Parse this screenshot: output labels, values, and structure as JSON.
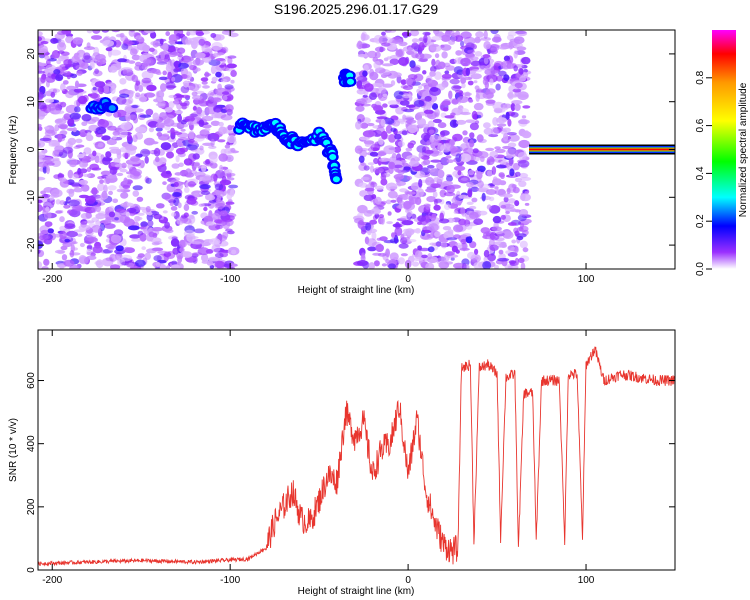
{
  "chart_data": [
    {
      "type": "heatmap",
      "title": "S196.2025.296.01.17.G29",
      "xlabel": "Height of straight line (km)",
      "ylabel": "Frequency (Hz)",
      "xlim": [
        -208,
        150
      ],
      "ylim": [
        -25,
        25
      ],
      "x_ticks": [
        -200,
        -100,
        0,
        100
      ],
      "y_ticks": [
        -20,
        -10,
        0,
        10,
        20
      ],
      "colorbar": {
        "label": "Normalized spectral amplitude",
        "range": [
          0,
          1
        ],
        "ticks": [
          0.0,
          0.2,
          0.4,
          0.6,
          0.8
        ],
        "colors": [
          "#ffffff",
          "#9b30ff",
          "#0000ff",
          "#00ffff",
          "#00ff00",
          "#ffff00",
          "#ff9900",
          "#ff0000",
          "#ff00ff"
        ]
      },
      "noise_regions": [
        {
          "x_range": [
            -208,
            -98
          ]
        },
        {
          "x_range": [
            -28,
            67
          ]
        }
      ],
      "features": [
        {
          "name": "track-descent",
          "points": [
            [
              -95,
              5
            ],
            [
              -85,
              4
            ],
            [
              -75,
              5
            ],
            [
              -70,
              3
            ],
            [
              -62,
              1
            ],
            [
              -50,
              3
            ],
            [
              -43,
              -1
            ],
            [
              -40,
              -6
            ]
          ],
          "peak_amplitude": 0.3
        },
        {
          "name": "blob-upper",
          "points": [
            [
              -36,
              15
            ],
            [
              -32,
              15
            ]
          ],
          "peak_amplitude": 0.3
        },
        {
          "name": "blob-left-1",
          "points": [
            [
              -178,
              9
            ],
            [
              -165,
              9
            ]
          ],
          "peak_amplitude": 0.25
        },
        {
          "name": "carrier-line",
          "points": [
            [
              68,
              0
            ],
            [
              150,
              0
            ]
          ],
          "peak_amplitude": 0.9
        }
      ]
    },
    {
      "type": "line",
      "xlabel": "Height of straight line (km)",
      "ylabel": "SNR (10 * v/v)",
      "xlim": [
        -208,
        150
      ],
      "ylim": [
        0,
        760
      ],
      "x_ticks": [
        -200,
        -100,
        0,
        100
      ],
      "y_ticks": [
        0,
        200,
        400,
        600
      ],
      "line_color": "#e8352e",
      "series": [
        {
          "name": "SNR",
          "x": [
            -208,
            -180,
            -150,
            -120,
            -90,
            -80,
            -75,
            -70,
            -65,
            -60,
            -55,
            -50,
            -45,
            -40,
            -35,
            -30,
            -25,
            -20,
            -15,
            -10,
            -5,
            0,
            5,
            10,
            15,
            20,
            25,
            28,
            30,
            35,
            37,
            40,
            45,
            50,
            52,
            55,
            60,
            62,
            65,
            70,
            72,
            75,
            80,
            85,
            88,
            90,
            95,
            98,
            100,
            105,
            110,
            120,
            130,
            140,
            150
          ],
          "y": [
            20,
            25,
            30,
            25,
            35,
            70,
            150,
            200,
            250,
            160,
            150,
            220,
            300,
            280,
            500,
            420,
            470,
            300,
            380,
            400,
            520,
            300,
            480,
            250,
            150,
            80,
            60,
            70,
            640,
            650,
            90,
            640,
            650,
            620,
            100,
            610,
            620,
            70,
            560,
            560,
            90,
            600,
            600,
            600,
            90,
            620,
            620,
            100,
            650,
            700,
            600,
            620,
            610,
            600,
            600
          ]
        }
      ]
    }
  ]
}
